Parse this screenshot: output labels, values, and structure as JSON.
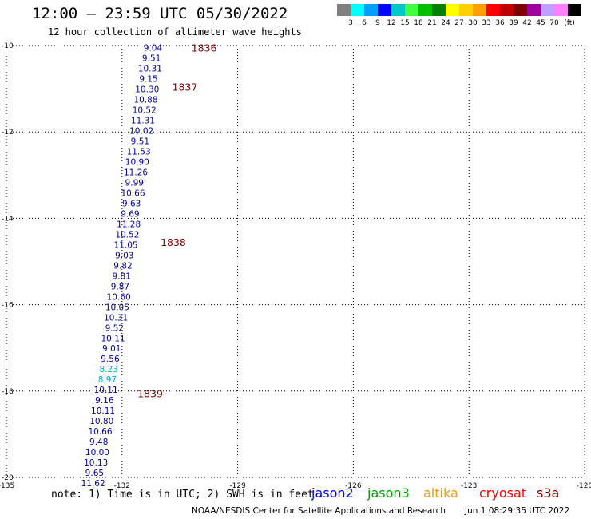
{
  "header": {
    "title": "12:00 – 23:59 UTC 05/30/2022",
    "subtitle": "12 hour collection of altimeter wave heights"
  },
  "legend": {
    "colors": [
      "#808080",
      "#00ffff",
      "#00a0ff",
      "#0000ff",
      "#00c8c8",
      "#40ff40",
      "#00c000",
      "#008000",
      "#ffff00",
      "#ffd000",
      "#ffa000",
      "#ff0000",
      "#c00000",
      "#800000",
      "#a000a0",
      "#c0a0ff",
      "#ff80ff",
      "#000000"
    ],
    "labels": [
      "3",
      "6",
      "9",
      "12",
      "15",
      "18",
      "21",
      "24",
      "27",
      "30",
      "33",
      "36",
      "39",
      "42",
      "45",
      "70"
    ],
    "unit": "(ft)"
  },
  "map": {
    "lon_ticks": [
      -135,
      -132,
      -129,
      -126,
      -123,
      -120
    ],
    "lat_ticks": [
      -10,
      -12,
      -14,
      -16,
      -18,
      -20
    ],
    "lon_range": [
      -135,
      -120
    ],
    "lat_range": [
      -10,
      -20
    ],
    "grid": true
  },
  "observations": {
    "start_lat": -10.05,
    "lat_step": -0.24,
    "start_lon": -131.2,
    "end_lon": -132.75,
    "normal_color": "#0000a0",
    "low_color": "#00b0c8",
    "values": [
      "9.04",
      "9.51",
      "10.31",
      "9.15",
      "10.30",
      "10.88",
      "10.52",
      "11.31",
      "10.02",
      "9.51",
      "11.53",
      "10.90",
      "11.26",
      "9.99",
      "10.66",
      "9.63",
      "9.69",
      "11.28",
      "10.52",
      "11.05",
      "9.03",
      "9.82",
      "9.81",
      "9.87",
      "10.60",
      "10.05",
      "10.31",
      "9.52",
      "10.11",
      "9.01",
      "9.56",
      "8.23",
      "8.97",
      "10.11",
      "9.16",
      "10.11",
      "10.80",
      "10.66",
      "9.48",
      "10.00",
      "10.13",
      "9.65",
      "11.62"
    ],
    "low_indices": [
      31,
      32
    ]
  },
  "passes": [
    {
      "label": "1836",
      "lat": -10.05,
      "lon": -130.2
    },
    {
      "label": "1837",
      "lat": -10.95,
      "lon": -130.7
    },
    {
      "label": "1838",
      "lat": -14.55,
      "lon": -131.0
    },
    {
      "label": "1839",
      "lat": -18.05,
      "lon": -131.6
    }
  ],
  "footer": {
    "note": "note: 1) Time is in UTC; 2) SWH is in feet",
    "satellites": [
      {
        "name": "jason2",
        "color": "#0000ff"
      },
      {
        "name": "jason3",
        "color": "#00a000"
      },
      {
        "name": "altika",
        "color": "#ff9900"
      },
      {
        "name": "cryosat",
        "color": "#ff0000"
      },
      {
        "name": "s3a",
        "color": "#800000"
      }
    ],
    "credit": "NOAA/NESDIS Center for Satellite Applications and Research",
    "timestamp": "Jun  1 08:29:35 UTC 2022"
  }
}
